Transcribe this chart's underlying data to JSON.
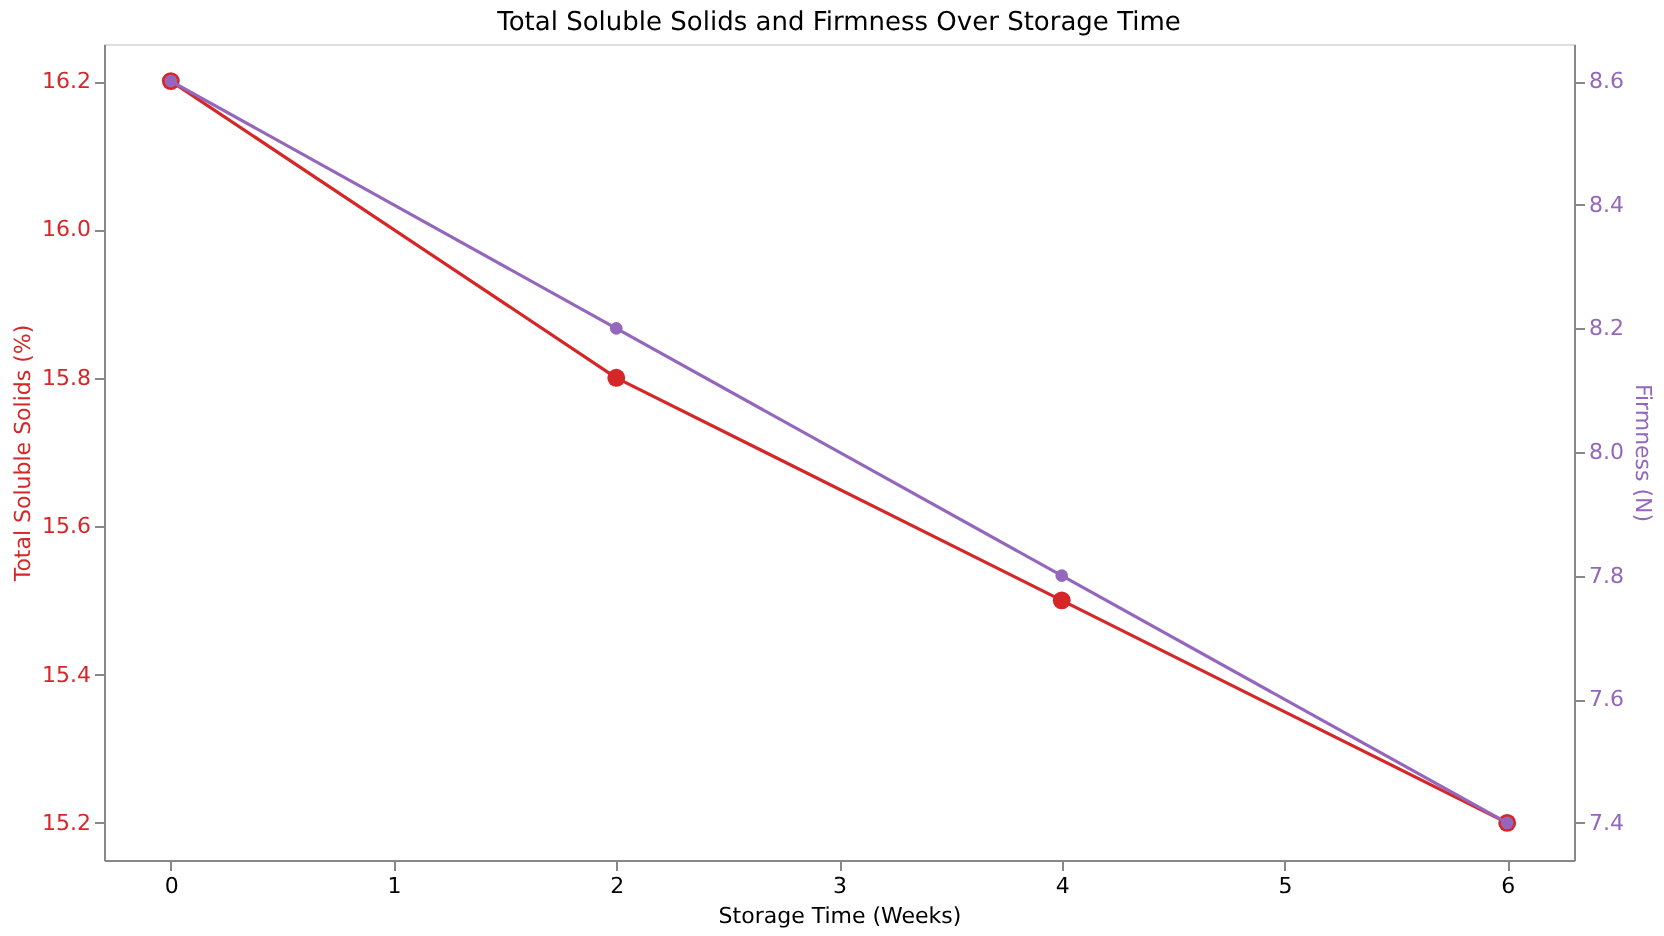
{
  "chart_data": {
    "type": "line",
    "title": "Total Soluble Solids and Firmness Over Storage Time",
    "xlabel": "Storage Time (Weeks)",
    "ylabel": "Total Soluble Solids (%)",
    "y2label": "Firmness (N)",
    "x": [
      0,
      2,
      4,
      6
    ],
    "series": [
      {
        "color": "#d62728",
        "values": [
          16.2,
          15.8,
          15.5,
          15.2
        ],
        "axis": "y"
      },
      {
        "color": "#9467bd",
        "values": [
          8.6,
          8.2,
          7.8,
          7.4
        ],
        "axis": "y2"
      }
    ],
    "xlim": [
      -0.3,
      6.3
    ],
    "xticks": [
      0,
      1,
      2,
      3,
      4,
      5,
      6
    ],
    "ylim": [
      15.15,
      16.25
    ],
    "yticks": [
      15.2,
      15.4,
      15.6,
      15.8,
      {
        "value": 16,
        "label": "16.0"
      },
      16.2
    ],
    "y2lim": [
      7.34,
      8.66
    ],
    "y2ticks": [
      7.4,
      7.6,
      7.8,
      {
        "value": 8,
        "label": "8.0"
      },
      8.2,
      8.4,
      8.6
    ],
    "grid": false,
    "marker": "circle",
    "line_style": "solid"
  }
}
